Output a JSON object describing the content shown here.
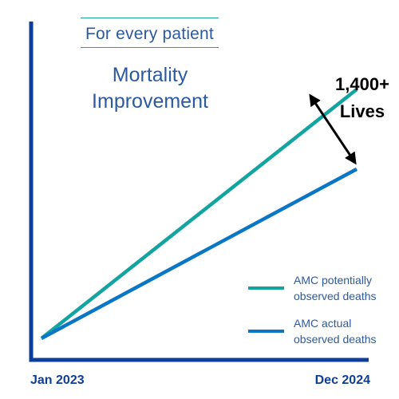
{
  "subtitle": "For every patient",
  "title": "Mortality Improvement",
  "gap_annotation": "1,400+\nLives",
  "colors": {
    "axis": "#0d3e9a",
    "text": "#2c5aa0",
    "rule": "#1aa3a0",
    "annotation_arrow": "#000000"
  },
  "chart_data": {
    "type": "line",
    "title": "Mortality Improvement",
    "subtitle": "For every patient",
    "x": [
      "Jan 2023",
      "Dec 2024"
    ],
    "xlabel": "",
    "ylabel": "",
    "grid": false,
    "legend_position": "bottom-right",
    "series": [
      {
        "name": "AMC potentially\nobserved deaths",
        "color": "#12a4a1",
        "values": [
          0,
          1
        ]
      },
      {
        "name": "AMC actual\nobserved deaths",
        "color": "#0a76c6",
        "values": [
          0,
          0.68
        ]
      }
    ],
    "annotations": [
      {
        "text": "1,400+\nLives",
        "type": "double-arrow",
        "between": [
          "AMC potentially\nobserved deaths",
          "AMC actual\nobserved deaths"
        ],
        "at_x": "Dec 2024"
      }
    ]
  }
}
